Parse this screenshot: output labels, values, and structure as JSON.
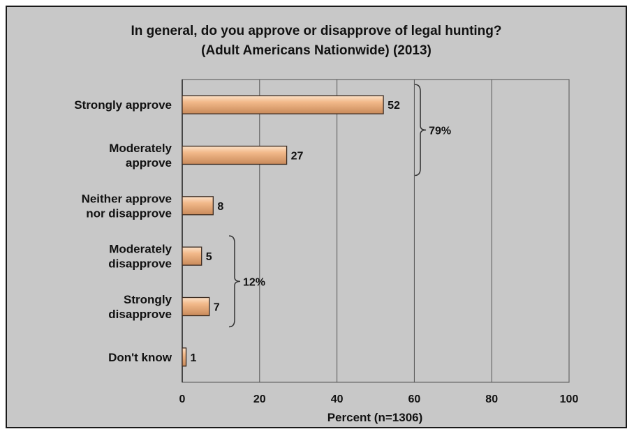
{
  "chart_data": {
    "type": "bar",
    "orientation": "horizontal",
    "title": "In general, do you approve or disapprove of legal hunting?",
    "subtitle": "(Adult Americans Nationwide) (2013)",
    "categories": [
      [
        "Strongly approve"
      ],
      [
        "Moderately",
        "approve"
      ],
      [
        "Neither approve",
        "nor disapprove"
      ],
      [
        "Moderately",
        "disapprove"
      ],
      [
        "Strongly",
        "disapprove"
      ],
      [
        "Don't know"
      ]
    ],
    "values": [
      52,
      27,
      8,
      5,
      7,
      1
    ],
    "xlabel": "Percent (n=1306)",
    "xlim": [
      0,
      100
    ],
    "xticks": [
      0,
      20,
      40,
      60,
      80,
      100
    ],
    "grid": "vertical",
    "bar_color": "#f2b98a",
    "bar_outline_color": "#3a2a20",
    "plot_background": "#c8c8c8",
    "brackets": [
      {
        "label": "79%",
        "from_index": 0,
        "to_index": 1
      },
      {
        "label": "12%",
        "from_index": 3,
        "to_index": 4
      }
    ]
  }
}
